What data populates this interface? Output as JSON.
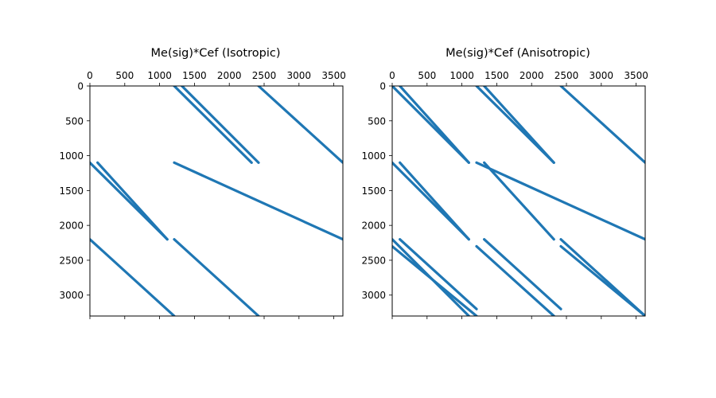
{
  "chart_data": [
    {
      "type": "spy",
      "title": "Me(sig)*Cef (Isotropic)",
      "xlim": [
        0,
        3630
      ],
      "ylim": [
        3300,
        0
      ],
      "xaxis_position": "top",
      "xticks": [
        0,
        500,
        1000,
        1500,
        2000,
        2500,
        3000,
        3500
      ],
      "xtick_labels": [
        "0",
        "500",
        "1000",
        "1500",
        "2000",
        "2500",
        "3000",
        "3500"
      ],
      "yticks": [
        0,
        500,
        1000,
        1500,
        2000,
        2500,
        3000
      ],
      "ytick_labels": [
        "0",
        "500",
        "1000",
        "1500",
        "2000",
        "2500",
        "3000"
      ],
      "color": "#1f77b4",
      "segments": [
        {
          "x": [
            1210,
            2320
          ],
          "y": [
            0,
            1100
          ]
        },
        {
          "x": [
            1320,
            2420
          ],
          "y": [
            0,
            1100
          ]
        },
        {
          "x": [
            2420,
            3630
          ],
          "y": [
            0,
            1100
          ]
        },
        {
          "x": [
            0,
            1110
          ],
          "y": [
            1100,
            2200
          ]
        },
        {
          "x": [
            110,
            1110
          ],
          "y": [
            1100,
            2200
          ]
        },
        {
          "x": [
            1210,
            3630
          ],
          "y": [
            1100,
            2200
          ]
        },
        {
          "x": [
            0,
            1210
          ],
          "y": [
            2200,
            3300
          ]
        },
        {
          "x": [
            1210,
            2420
          ],
          "y": [
            2200,
            3300
          ]
        }
      ]
    },
    {
      "type": "spy",
      "title": "Me(sig)*Cef (Anisotropic)",
      "xlim": [
        0,
        3630
      ],
      "ylim": [
        3300,
        0
      ],
      "xaxis_position": "top",
      "xticks": [
        0,
        500,
        1000,
        1500,
        2000,
        2500,
        3000,
        3500
      ],
      "xtick_labels": [
        "0",
        "500",
        "1000",
        "1500",
        "2000",
        "2500",
        "3000",
        "3500"
      ],
      "yticks": [
        0,
        500,
        1000,
        1500,
        2000,
        2500,
        3000
      ],
      "ytick_labels": [
        "0",
        "500",
        "1000",
        "1500",
        "2000",
        "2500",
        "3000"
      ],
      "color": "#1f77b4",
      "segments": [
        {
          "x": [
            0,
            1100
          ],
          "y": [
            0,
            1100
          ]
        },
        {
          "x": [
            110,
            1100
          ],
          "y": [
            0,
            1100
          ]
        },
        {
          "x": [
            1210,
            2320
          ],
          "y": [
            0,
            1100
          ]
        },
        {
          "x": [
            1320,
            2320
          ],
          "y": [
            0,
            1100
          ]
        },
        {
          "x": [
            2420,
            3630
          ],
          "y": [
            0,
            1100
          ]
        },
        {
          "x": [
            0,
            1100
          ],
          "y": [
            1100,
            2200
          ]
        },
        {
          "x": [
            110,
            1100
          ],
          "y": [
            1100,
            2200
          ]
        },
        {
          "x": [
            1320,
            2320
          ],
          "y": [
            1100,
            2200
          ]
        },
        {
          "x": [
            1210,
            3630
          ],
          "y": [
            1100,
            2200
          ]
        },
        {
          "x": [
            0,
            1100
          ],
          "y": [
            2200,
            3300
          ]
        },
        {
          "x": [
            110,
            1210
          ],
          "y": [
            2200,
            3200
          ]
        },
        {
          "x": [
            0,
            1210
          ],
          "y": [
            2300,
            3300
          ]
        },
        {
          "x": [
            1320,
            2420
          ],
          "y": [
            2200,
            3200
          ]
        },
        {
          "x": [
            1210,
            2320
          ],
          "y": [
            2300,
            3300
          ]
        },
        {
          "x": [
            2420,
            3630
          ],
          "y": [
            2200,
            3300
          ]
        },
        {
          "x": [
            2420,
            3630
          ],
          "y": [
            2300,
            3300
          ]
        }
      ]
    }
  ]
}
